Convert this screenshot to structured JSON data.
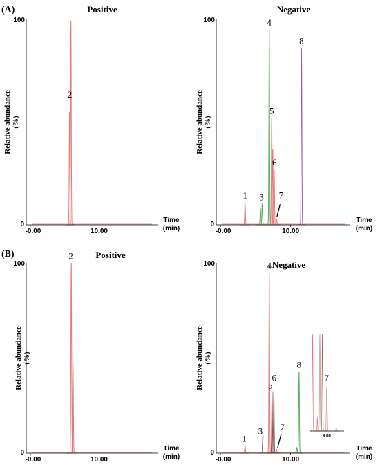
{
  "figure": {
    "panels": [
      {
        "label": "(A)",
        "title": "Positive"
      },
      {
        "label": "",
        "title": "Negative"
      },
      {
        "label": "(B)",
        "title": "Positive"
      },
      {
        "label": "",
        "title": "Negative"
      }
    ]
  },
  "colors": {
    "red": "#e07a7a",
    "green": "#5fa85f",
    "purple": "#9b5fa0",
    "darkred": "#b04040",
    "gray": "#7d6a6a",
    "axis": "#000000"
  },
  "chart_data": [
    {
      "type": "line",
      "panel": "A-positive",
      "title": "Positive",
      "ylabel": "Relative abundance (%)",
      "xlabel": "Time (min)",
      "xlim": [
        -0.6,
        18.5
      ],
      "ylim": [
        0,
        100
      ],
      "y_tick_labels": [
        "0",
        "100"
      ],
      "x_tick_labels": [
        "-0.00",
        "10.00"
      ],
      "x_tick_values": [
        0,
        10
      ],
      "peaks": [
        {
          "label": "",
          "rt": 5.7,
          "height": 55,
          "width": 0.12,
          "color": "red"
        },
        {
          "label": "2",
          "rt": 5.9,
          "height": 99,
          "width": 0.12,
          "color": "red"
        }
      ],
      "peak_labels": [
        {
          "text": "2",
          "x": 5.75,
          "y": 62
        }
      ]
    },
    {
      "type": "line",
      "panel": "A-negative",
      "title": "Negative",
      "ylabel": "Relative abundance (%)",
      "xlabel": "Time (min)",
      "xlim": [
        -0.6,
        18.5
      ],
      "ylim": [
        0,
        100
      ],
      "y_tick_labels": [
        "0",
        "100"
      ],
      "x_tick_labels": [
        "-0.00",
        "10.00"
      ],
      "x_tick_values": [
        0,
        10
      ],
      "peaks": [
        {
          "label": "1",
          "rt": 3.5,
          "height": 11,
          "width": 0.12,
          "color": "red"
        },
        {
          "label": "",
          "rt": 5.7,
          "height": 8,
          "width": 0.12,
          "color": "green"
        },
        {
          "label": "3",
          "rt": 5.95,
          "height": 10,
          "width": 0.12,
          "color": "green"
        },
        {
          "label": "4",
          "rt": 6.95,
          "height": 95,
          "width": 0.12,
          "color": "green"
        },
        {
          "label": "5",
          "rt": 7.3,
          "height": 52,
          "width": 0.12,
          "color": "red"
        },
        {
          "label": "",
          "rt": 7.45,
          "height": 37,
          "width": 0.12,
          "color": "red"
        },
        {
          "label": "6",
          "rt": 7.65,
          "height": 27,
          "width": 0.12,
          "color": "red"
        },
        {
          "label": "7",
          "rt": 8.0,
          "height": 3,
          "width": 0.12,
          "color": "red"
        },
        {
          "label": "8",
          "rt": 11.55,
          "height": 86,
          "width": 0.12,
          "color": "purple"
        }
      ],
      "peak_labels": [
        {
          "text": "1",
          "x": 3.5,
          "y": 13
        },
        {
          "text": "3",
          "x": 5.85,
          "y": 12
        },
        {
          "text": "4",
          "x": 6.95,
          "y": 97
        },
        {
          "text": "5",
          "x": 7.3,
          "y": 54
        },
        {
          "text": "6",
          "x": 7.7,
          "y": 29
        },
        {
          "text": "7",
          "x": 8.65,
          "y": 13
        },
        {
          "text": "8",
          "x": 11.55,
          "y": 88
        }
      ],
      "pointers": [
        {
          "from": [
            8.5,
            10
          ],
          "to": [
            8.05,
            4
          ]
        }
      ]
    },
    {
      "type": "line",
      "panel": "B-positive",
      "title": "Positive",
      "ylabel": "Relative abundance (%)",
      "xlabel": "Time (min)",
      "xlim": [
        -0.6,
        18.5
      ],
      "ylim": [
        0,
        100
      ],
      "y_tick_labels": [
        "0",
        "100"
      ],
      "x_tick_labels": [
        "-0.00",
        "10.00"
      ],
      "x_tick_values": [
        0,
        10
      ],
      "peaks": [
        {
          "label": "2",
          "rt": 5.95,
          "height": 100,
          "width": 0.13,
          "color": "red"
        },
        {
          "label": "",
          "rt": 6.2,
          "height": 48,
          "width": 0.13,
          "color": "red"
        }
      ],
      "peak_labels": [
        {
          "text": "2",
          "x": 5.9,
          "y": 102
        }
      ]
    },
    {
      "type": "line",
      "panel": "B-negative",
      "title": "Negative",
      "ylabel": "Relative abundance (%)",
      "xlabel": "Time (min)",
      "xlim": [
        -0.6,
        18.5
      ],
      "ylim": [
        0,
        100
      ],
      "y_tick_labels": [
        "0",
        "100"
      ],
      "x_tick_labels": [
        "-0.00",
        "10.00"
      ],
      "x_tick_values": [
        0,
        10
      ],
      "peaks": [
        {
          "label": "1",
          "rt": 3.5,
          "height": 4,
          "width": 0.12,
          "color": "red"
        },
        {
          "label": "3",
          "rt": 6.0,
          "height": 2,
          "width": 0.12,
          "color": "red"
        },
        {
          "label": "4",
          "rt": 6.95,
          "height": 95,
          "width": 0.12,
          "color": "red"
        },
        {
          "label": "5",
          "rt": 7.35,
          "height": 32,
          "width": 0.12,
          "color": "darkred"
        },
        {
          "label": "6",
          "rt": 7.6,
          "height": 33,
          "width": 0.12,
          "color": "gray"
        },
        {
          "label": "7",
          "rt": 8.0,
          "height": 2,
          "width": 0.12,
          "color": "red"
        },
        {
          "label": "8",
          "rt": 11.2,
          "height": 43,
          "width": 0.12,
          "color": "green"
        },
        {
          "label": "",
          "rt": 10.9,
          "height": 3,
          "width": 0.12,
          "color": "green"
        }
      ],
      "peak_labels": [
        {
          "text": "1",
          "x": 3.4,
          "y": 6
        },
        {
          "text": "3",
          "x": 5.7,
          "y": 10
        },
        {
          "text": "4",
          "x": 6.95,
          "y": 97
        },
        {
          "text": "5",
          "x": 7.1,
          "y": 34
        },
        {
          "text": "6",
          "x": 7.65,
          "y": 38
        },
        {
          "text": "7",
          "x": 8.8,
          "y": 12
        },
        {
          "text": "8",
          "x": 11.2,
          "y": 45
        }
      ],
      "pointers": [
        {
          "from": [
            6.05,
            9
          ],
          "to": [
            6.0,
            2
          ]
        },
        {
          "from": [
            8.65,
            10
          ],
          "to": [
            8.15,
            3
          ]
        }
      ],
      "inset": {
        "x_tick_labels": [
          "8.00"
        ],
        "x_tick_values": [
          8.0
        ],
        "xlim": [
          7.45,
          8.55
        ],
        "ylim": [
          0,
          100
        ],
        "peaks": [
          {
            "rt": 7.55,
            "height": 100,
            "width": 0.025,
            "color": "red"
          },
          {
            "rt": 7.7,
            "height": 14,
            "width": 0.02,
            "color": "red"
          },
          {
            "rt": 7.78,
            "height": 100,
            "width": 0.025,
            "color": "red"
          },
          {
            "rt": 7.86,
            "height": 100,
            "width": 0.025,
            "color": "gray"
          },
          {
            "rt": 8.0,
            "height": 46,
            "width": 0.03,
            "color": "red"
          },
          {
            "rt": 8.3,
            "height": 4,
            "width": 0.02,
            "color": "red"
          }
        ],
        "peak_labels": [
          {
            "text": "7",
            "x": 8.0,
            "y": 52
          }
        ]
      }
    }
  ]
}
